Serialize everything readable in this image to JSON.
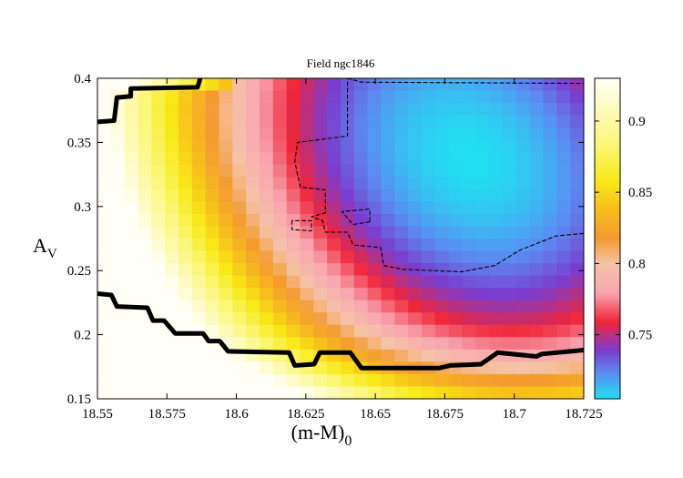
{
  "chart_data": {
    "type": "heatmap",
    "title": "Field ngc1846",
    "xlabel": "(m-M)",
    "xlabel_sub": "0",
    "ylabel": "A",
    "ylabel_sub": "V",
    "xlim": [
      18.55,
      18.725
    ],
    "ylim": [
      0.15,
      0.4
    ],
    "x_ticks": [
      18.55,
      18.575,
      18.6,
      18.625,
      18.65,
      18.675,
      18.7,
      18.725
    ],
    "x_tick_labels": [
      "18.55",
      "18.575",
      "18.6",
      "18.625",
      "18.65",
      "18.675",
      "18.7",
      "18.725"
    ],
    "y_ticks": [
      0.15,
      0.2,
      0.25,
      0.3,
      0.35,
      0.4
    ],
    "y_tick_labels": [
      "0.15",
      "0.2",
      "0.25",
      "0.3",
      "0.35",
      "0.4"
    ],
    "colorbar": {
      "range": [
        0.705,
        0.93
      ],
      "ticks": [
        0.75,
        0.8,
        0.85,
        0.9
      ],
      "tick_labels": [
        "0.75",
        "0.8",
        "0.85",
        "0.9"
      ]
    },
    "minimum": {
      "x": 18.684,
      "y": 0.338,
      "z": 0.705
    },
    "contours": [
      {
        "name": "outer",
        "style": "solid-thick",
        "paths": [
          [
            [
              18.55,
              0.366
            ],
            [
              18.556,
              0.367
            ],
            [
              18.557,
              0.385
            ],
            [
              18.562,
              0.386
            ],
            [
              18.562,
              0.392
            ],
            [
              18.586,
              0.393
            ],
            [
              18.587,
              0.4
            ]
          ],
          [
            [
              18.55,
              0.232
            ],
            [
              18.555,
              0.231
            ],
            [
              18.557,
              0.222
            ],
            [
              18.568,
              0.221
            ],
            [
              18.57,
              0.211
            ],
            [
              18.574,
              0.211
            ],
            [
              18.578,
              0.201
            ],
            [
              18.588,
              0.201
            ],
            [
              18.59,
              0.195
            ],
            [
              18.594,
              0.195
            ],
            [
              18.597,
              0.187
            ],
            [
              18.619,
              0.186
            ],
            [
              18.621,
              0.176
            ],
            [
              18.628,
              0.177
            ],
            [
              18.63,
              0.186
            ],
            [
              18.641,
              0.186
            ],
            [
              18.645,
              0.174
            ],
            [
              18.673,
              0.174
            ],
            [
              18.677,
              0.176
            ],
            [
              18.688,
              0.177
            ],
            [
              18.694,
              0.186
            ],
            [
              18.708,
              0.183
            ],
            [
              18.71,
              0.185
            ],
            [
              18.725,
              0.188
            ]
          ]
        ]
      },
      {
        "name": "inner",
        "style": "dashed-thin",
        "paths": [
          [
            [
              18.6,
              0.4
            ],
            [
              18.64,
              0.4
            ],
            [
              18.64,
              0.355
            ],
            [
              18.622,
              0.35
            ],
            [
              18.621,
              0.335
            ],
            [
              18.623,
              0.315
            ],
            [
              18.632,
              0.313
            ],
            [
              18.632,
              0.295
            ],
            [
              18.627,
              0.292
            ],
            [
              18.631,
              0.289
            ],
            [
              18.632,
              0.28
            ],
            [
              18.64,
              0.28
            ],
            [
              18.642,
              0.27
            ],
            [
              18.652,
              0.268
            ],
            [
              18.653,
              0.254
            ],
            [
              18.66,
              0.251
            ],
            [
              18.681,
              0.249
            ],
            [
              18.693,
              0.254
            ],
            [
              18.702,
              0.266
            ],
            [
              18.715,
              0.277
            ],
            [
              18.725,
              0.279
            ]
          ],
          [
            [
              18.64,
              0.4
            ],
            [
              18.645,
              0.397
            ],
            [
              18.725,
              0.396
            ]
          ],
          [
            [
              18.62,
              0.289
            ],
            [
              18.62,
              0.282
            ],
            [
              18.627,
              0.281
            ],
            [
              18.627,
              0.289
            ],
            [
              18.62,
              0.289
            ]
          ],
          [
            [
              18.648,
              0.288
            ],
            [
              18.642,
              0.286
            ],
            [
              18.638,
              0.296
            ],
            [
              18.648,
              0.298
            ],
            [
              18.648,
              0.288
            ]
          ]
        ]
      }
    ]
  }
}
